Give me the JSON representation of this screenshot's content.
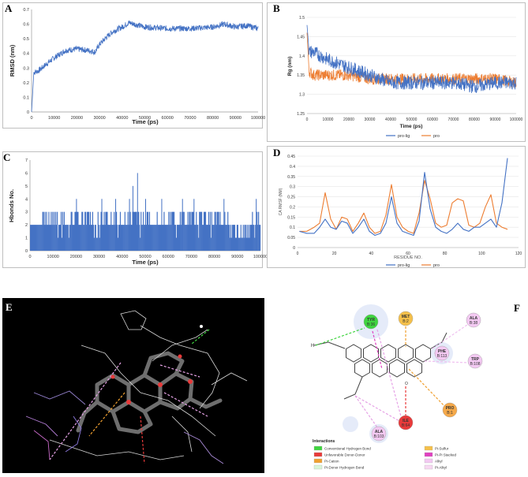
{
  "panels": {
    "A": {
      "label": "A"
    },
    "B": {
      "label": "B"
    },
    "C": {
      "label": "C"
    },
    "D": {
      "label": "D"
    },
    "E": {
      "label": "E"
    },
    "F": {
      "label": "F"
    }
  },
  "chart_data": [
    {
      "id": "A",
      "type": "line",
      "title": "",
      "xlabel": "Time (ps)",
      "ylabel": "RMSD (nm)",
      "xlim": [
        0,
        100000
      ],
      "ylim": [
        0,
        0.7
      ],
      "xticks": [
        "0",
        "10000",
        "20000",
        "30000",
        "40000",
        "50000",
        "60000",
        "70000",
        "80000",
        "90000",
        "100000"
      ],
      "yticks": [
        "0",
        "0.1",
        "0.2",
        "0.3",
        "0.4",
        "0.5",
        "0.6",
        "0.7"
      ],
      "series": [
        {
          "name": "RMSD",
          "color": "#4472c4",
          "x": [
            0,
            1000,
            3000,
            6000,
            10000,
            15000,
            20000,
            25000,
            28000,
            30000,
            33000,
            36000,
            40000,
            43000,
            50000,
            60000,
            70000,
            80000,
            85000,
            90000,
            95000,
            100000
          ],
          "values": [
            0.0,
            0.27,
            0.28,
            0.32,
            0.37,
            0.42,
            0.43,
            0.42,
            0.41,
            0.46,
            0.51,
            0.55,
            0.58,
            0.61,
            0.58,
            0.57,
            0.57,
            0.58,
            0.6,
            0.58,
            0.59,
            0.57
          ],
          "noise": 0.02
        }
      ]
    },
    {
      "id": "B",
      "type": "line",
      "title": "",
      "xlabel": "Time (ps)",
      "ylabel": "Rg (nm)",
      "xlim": [
        0,
        100000
      ],
      "ylim": [
        1.25,
        1.5
      ],
      "xticks": [
        "0",
        "10000",
        "20000",
        "30000",
        "40000",
        "50000",
        "60000",
        "70000",
        "80000",
        "90000",
        "100000"
      ],
      "yticks": [
        "1.25",
        "1.3",
        "1.35",
        "1.4",
        "1.45",
        "1.5"
      ],
      "legend": [
        "pro-lig",
        "pro"
      ],
      "series": [
        {
          "name": "pro-lig",
          "color": "#4472c4",
          "x": [
            0,
            1000,
            3000,
            10000,
            20000,
            30000,
            35000,
            40000,
            50000,
            60000,
            70000,
            80000,
            90000,
            100000
          ],
          "values": [
            1.48,
            1.41,
            1.41,
            1.39,
            1.37,
            1.35,
            1.34,
            1.33,
            1.33,
            1.33,
            1.33,
            1.32,
            1.33,
            1.33
          ],
          "noise": 0.018
        },
        {
          "name": "pro",
          "color": "#ed7d31",
          "x": [
            0,
            1000,
            3000,
            10000,
            20000,
            30000,
            40000,
            50000,
            60000,
            70000,
            80000,
            90000,
            100000
          ],
          "values": [
            1.46,
            1.36,
            1.35,
            1.35,
            1.35,
            1.34,
            1.34,
            1.34,
            1.34,
            1.34,
            1.34,
            1.34,
            1.33
          ],
          "noise": 0.015
        }
      ]
    },
    {
      "id": "C",
      "type": "bar",
      "title": "",
      "xlabel": "Time (ps)",
      "ylabel": "Hbonds No.",
      "xlim": [
        0,
        100000
      ],
      "ylim": [
        0,
        7
      ],
      "xticks": [
        "0",
        "10000",
        "20000",
        "30000",
        "40000",
        "50000",
        "60000",
        "70000",
        "80000",
        "90000",
        "100000"
      ],
      "yticks": [
        "0",
        "1",
        "2",
        "3",
        "4",
        "5",
        "6",
        "7"
      ],
      "series": [
        {
          "name": "Hbonds",
          "color": "#4472c4",
          "baseline": 2,
          "spikes": [
            {
              "x": 20000,
              "value": 4
            },
            {
              "x": 31000,
              "value": 4
            },
            {
              "x": 37000,
              "value": 4
            },
            {
              "x": 43000,
              "value": 4
            },
            {
              "x": 44500,
              "value": 5
            },
            {
              "x": 46500,
              "value": 6
            },
            {
              "x": 50000,
              "value": 4
            },
            {
              "x": 57000,
              "value": 4
            },
            {
              "x": 66000,
              "value": 4
            },
            {
              "x": 71000,
              "value": 4
            },
            {
              "x": 84000,
              "value": 4
            },
            {
              "x": 98000,
              "value": 4
            }
          ]
        }
      ]
    },
    {
      "id": "D",
      "type": "line",
      "title": "",
      "xlabel": "RESIDUE NO.",
      "ylabel": "CA RMSF (NM)",
      "xlim": [
        0,
        120
      ],
      "ylim": [
        0,
        0.45
      ],
      "xticks": [
        "0",
        "20",
        "40",
        "60",
        "80",
        "100",
        "120"
      ],
      "yticks": [
        "0",
        "0.05",
        "0.1",
        "0.15",
        "0.2",
        "0.25",
        "0.3",
        "0.35",
        "0.4",
        "0.45"
      ],
      "legend": [
        "pro-lig",
        "pro"
      ],
      "series": [
        {
          "name": "pro-lig",
          "color": "#4472c4",
          "x": [
            1,
            5,
            9,
            12,
            15,
            18,
            21,
            24,
            27,
            30,
            33,
            36,
            39,
            42,
            45,
            48,
            51,
            54,
            57,
            60,
            63,
            66,
            69,
            72,
            75,
            78,
            81,
            84,
            87,
            90,
            93,
            96,
            99,
            102,
            105,
            108,
            111,
            114
          ],
          "values": [
            0.08,
            0.07,
            0.07,
            0.1,
            0.14,
            0.1,
            0.09,
            0.13,
            0.12,
            0.07,
            0.1,
            0.14,
            0.08,
            0.06,
            0.07,
            0.12,
            0.25,
            0.12,
            0.08,
            0.07,
            0.06,
            0.13,
            0.37,
            0.19,
            0.1,
            0.08,
            0.07,
            0.09,
            0.12,
            0.09,
            0.08,
            0.1,
            0.1,
            0.12,
            0.14,
            0.1,
            0.22,
            0.44
          ]
        },
        {
          "name": "pro",
          "color": "#ed7d31",
          "x": [
            1,
            5,
            9,
            12,
            15,
            18,
            21,
            24,
            27,
            30,
            33,
            36,
            39,
            42,
            45,
            48,
            51,
            54,
            57,
            60,
            63,
            66,
            69,
            72,
            75,
            78,
            81,
            84,
            87,
            90,
            93,
            96,
            99,
            102,
            105,
            108,
            111,
            114
          ],
          "values": [
            0.08,
            0.08,
            0.1,
            0.12,
            0.27,
            0.14,
            0.09,
            0.15,
            0.14,
            0.08,
            0.12,
            0.17,
            0.1,
            0.07,
            0.08,
            0.16,
            0.31,
            0.15,
            0.1,
            0.08,
            0.07,
            0.17,
            0.33,
            0.24,
            0.12,
            0.1,
            0.11,
            0.22,
            0.24,
            0.23,
            0.11,
            0.1,
            0.12,
            0.2,
            0.26,
            0.12,
            0.1,
            0.09
          ]
        }
      ]
    }
  ],
  "molecule_view": {
    "description_label": "E",
    "background": "#000000"
  },
  "interaction_diagram": {
    "residues": [
      {
        "name": "TYR",
        "num": "B:36",
        "color": "#3fd43f"
      },
      {
        "name": "MET",
        "num": "B:2",
        "color": "#f5c04a"
      },
      {
        "name": "ALA",
        "num": "B:38",
        "color": "#f3c9f2"
      },
      {
        "name": "PHE",
        "num": "B:113",
        "color": "#f3c9f2"
      },
      {
        "name": "TRP",
        "num": "B:108",
        "color": "#f3c9f2"
      },
      {
        "name": "PRO",
        "num": "B:1",
        "color": "#f5a94a"
      },
      {
        "name": "ILE",
        "num": "B:64",
        "color": "#e83a3a"
      },
      {
        "name": "ALA",
        "num": "B:103",
        "color": "#f3c9f2"
      }
    ],
    "legend_title": "Interactions",
    "legend": [
      {
        "label": "Conventional Hydrogen Bond",
        "color": "#3fd43f"
      },
      {
        "label": "Unfavorable Donor-Donor",
        "color": "#e83a3a"
      },
      {
        "label": "Pi-Cation",
        "color": "#f0a030"
      },
      {
        "label": "Pi-Donor Hydrogen Bond",
        "color": "#d8f5d8"
      },
      {
        "label": "Pi-Sulfur",
        "color": "#f5c04a"
      },
      {
        "label": "Pi-Pi Stacked",
        "color": "#e040c0"
      },
      {
        "label": "Alkyl",
        "color": "#f3c9f2"
      },
      {
        "label": "Pi-Alkyl",
        "color": "#f7d8f2"
      }
    ]
  }
}
